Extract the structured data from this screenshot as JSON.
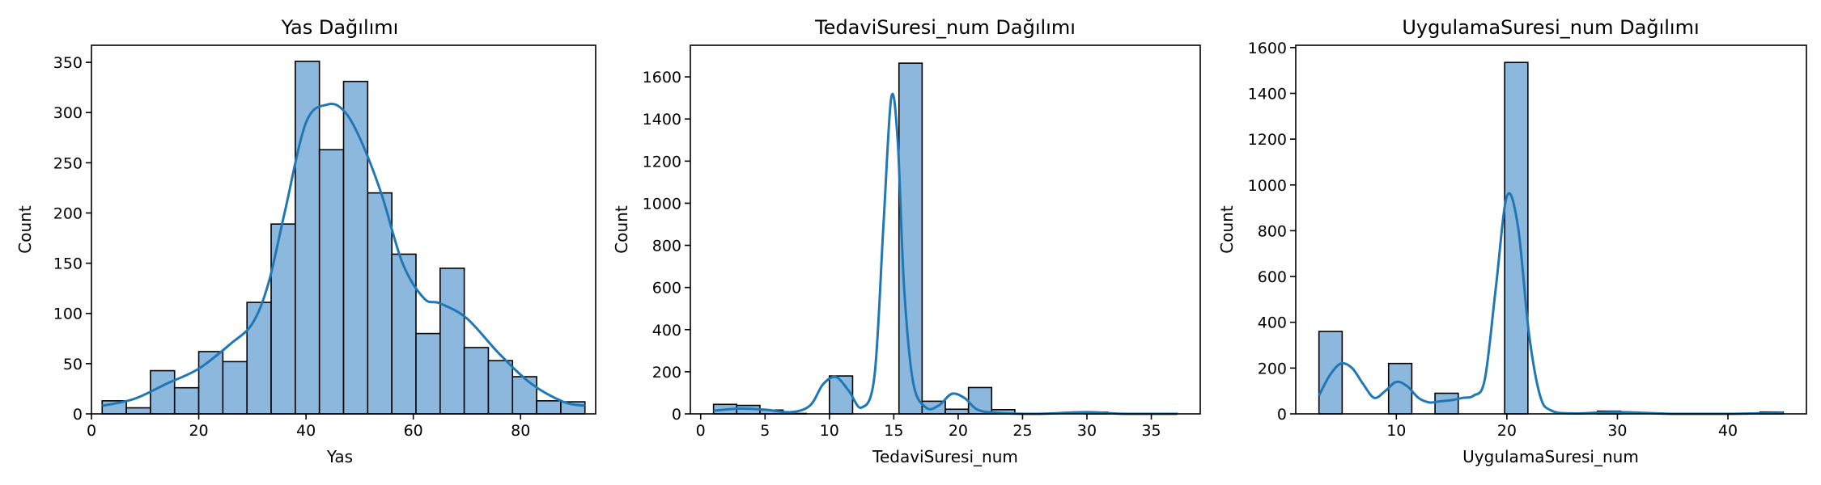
{
  "chart_data": [
    {
      "type": "histogram",
      "title": "Yas Dağılımı",
      "xlabel": "Yas",
      "ylabel": "Count",
      "xlim": [
        0,
        94
      ],
      "ylim": [
        0,
        367
      ],
      "xticks": [
        0,
        20,
        40,
        60,
        80
      ],
      "yticks": [
        0,
        50,
        100,
        150,
        200,
        250,
        300,
        350
      ],
      "bin_start": 2,
      "bin_width": 4.5,
      "counts": [
        13,
        6,
        43,
        26,
        62,
        52,
        111,
        189,
        351,
        263,
        331,
        220,
        159,
        80,
        145,
        66,
        53,
        37,
        13,
        12
      ],
      "kde_x": [
        2,
        8,
        14,
        20,
        26,
        30,
        33,
        36,
        40,
        44,
        47,
        50,
        54,
        58,
        62,
        65,
        70,
        76,
        82,
        88,
        92
      ],
      "kde_y": [
        8,
        15,
        30,
        45,
        70,
        90,
        130,
        200,
        290,
        308,
        302,
        275,
        220,
        150,
        115,
        110,
        95,
        60,
        30,
        12,
        8
      ],
      "bar_color": "#8db8dd",
      "line_color": "#1f77b4"
    },
    {
      "type": "histogram",
      "title": "TedaviSuresi_num Dağılımı",
      "xlabel": "TedaviSuresi_num",
      "ylabel": "Count",
      "xlim": [
        -0.8,
        38.8
      ],
      "ylim": [
        0,
        1750
      ],
      "xticks": [
        0,
        5,
        10,
        15,
        20,
        25,
        30,
        35
      ],
      "yticks": [
        0,
        200,
        400,
        600,
        800,
        1000,
        1200,
        1400,
        1600
      ],
      "bin_start": 1,
      "bin_width": 1.8,
      "counts": [
        45,
        40,
        18,
        2,
        0,
        180,
        0,
        0,
        1665,
        60,
        22,
        125,
        20,
        2,
        0,
        0,
        8,
        0,
        0,
        2
      ],
      "kde_x": [
        1,
        3,
        5,
        7,
        8.5,
        9.5,
        10.5,
        11.5,
        12.5,
        13.5,
        14.2,
        14.8,
        15.3,
        15.8,
        16.5,
        17.5,
        18.5,
        19.5,
        20.5,
        21.5,
        23,
        26,
        30,
        33,
        37
      ],
      "kde_y": [
        15,
        25,
        20,
        8,
        40,
        140,
        175,
        110,
        30,
        180,
        900,
        1500,
        1300,
        600,
        150,
        30,
        40,
        95,
        75,
        20,
        5,
        0,
        8,
        0,
        0
      ],
      "bar_color": "#8db8dd",
      "line_color": "#1f77b4"
    },
    {
      "type": "histogram",
      "title": "UygulamaSuresi_num Dağılımı",
      "xlabel": "UygulamaSuresi_num",
      "ylabel": "Count",
      "xlim": [
        0.9,
        47.1
      ],
      "ylim": [
        0,
        1610
      ],
      "xticks": [
        10,
        20,
        30,
        40
      ],
      "yticks": [
        0,
        200,
        400,
        600,
        800,
        1000,
        1200,
        1400,
        1600
      ],
      "bin_start": 3,
      "bin_width": 2.1,
      "counts": [
        360,
        0,
        0,
        220,
        0,
        90,
        0,
        0,
        1535,
        0,
        0,
        0,
        12,
        0,
        0,
        0,
        0,
        0,
        0,
        8
      ],
      "kde_x": [
        3,
        4,
        5,
        6,
        7,
        8,
        9,
        10,
        11,
        12,
        13,
        14,
        15,
        16,
        17,
        18,
        19,
        20,
        21,
        22,
        23,
        24,
        26,
        30,
        35,
        40,
        45
      ],
      "kde_y": [
        80,
        170,
        220,
        200,
        130,
        70,
        100,
        140,
        120,
        70,
        50,
        55,
        60,
        70,
        80,
        150,
        550,
        950,
        820,
        350,
        80,
        15,
        2,
        8,
        0,
        0,
        5
      ],
      "bar_color": "#8db8dd",
      "line_color": "#1f77b4"
    }
  ]
}
